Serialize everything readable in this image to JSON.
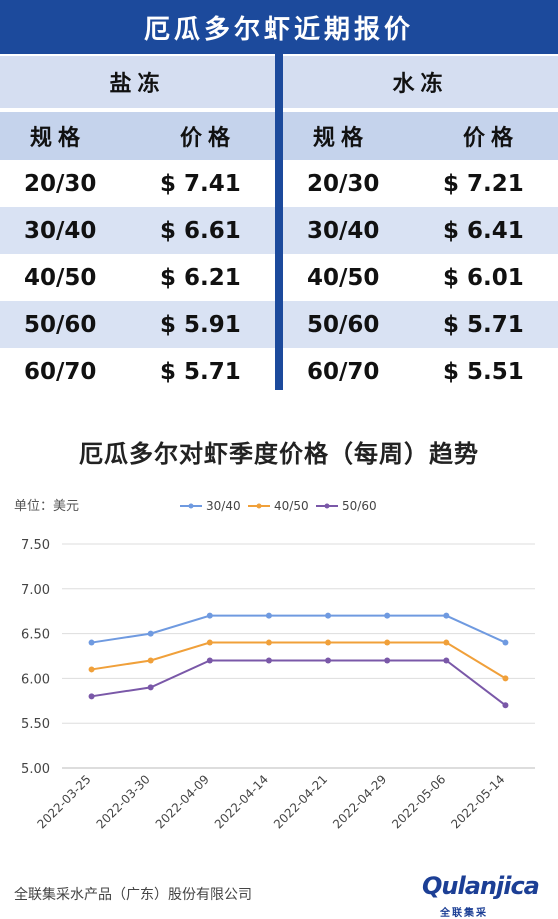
{
  "title": "厄瓜多尔虾近期报价",
  "table": {
    "left": {
      "category": "盐冻",
      "col_spec": "规格",
      "col_price": "价格",
      "rows": [
        {
          "spec": "20/30",
          "price": "$ 7.41"
        },
        {
          "spec": "30/40",
          "price": "$ 6.61"
        },
        {
          "spec": "40/50",
          "price": "$ 6.21"
        },
        {
          "spec": "50/60",
          "price": "$ 5.91"
        },
        {
          "spec": "60/70",
          "price": "$ 5.71"
        }
      ]
    },
    "right": {
      "category": "水冻",
      "col_spec": "规格",
      "col_price": "价格",
      "rows": [
        {
          "spec": "20/30",
          "price": "$ 7.21"
        },
        {
          "spec": "30/40",
          "price": "$ 6.41"
        },
        {
          "spec": "40/50",
          "price": "$ 6.01"
        },
        {
          "spec": "50/60",
          "price": "$ 5.71"
        },
        {
          "spec": "60/70",
          "price": "$ 5.51"
        }
      ]
    }
  },
  "chart_data": {
    "type": "line",
    "title": "厄瓜多尔对虾季度价格（每周）趋势",
    "unit_label": "单位：美元",
    "categories": [
      "2022-03-25",
      "2022-03-30",
      "2022-04-09",
      "2022-04-14",
      "2022-04-21",
      "2022-04-29",
      "2022-05-06",
      "2022-05-14"
    ],
    "ylim": [
      5.0,
      7.5
    ],
    "yticks": [
      "7.50",
      "7.00",
      "6.50",
      "6.00",
      "5.50",
      "5.00"
    ],
    "legend_position": "top",
    "grid": true,
    "series": [
      {
        "name": "30/40",
        "color": "#6f9ae0",
        "values": [
          6.4,
          6.5,
          6.7,
          6.7,
          6.7,
          6.7,
          6.7,
          6.4
        ]
      },
      {
        "name": "40/50",
        "color": "#f0a03a",
        "values": [
          6.1,
          6.2,
          6.4,
          6.4,
          6.4,
          6.4,
          6.4,
          6.0
        ]
      },
      {
        "name": "50/60",
        "color": "#7a58a8",
        "values": [
          5.8,
          5.9,
          6.2,
          6.2,
          6.2,
          6.2,
          6.2,
          5.7
        ]
      }
    ]
  },
  "footer": {
    "company": "全联集采水产品（广东）股份有限公司",
    "logo_text": "Qulanjica",
    "logo_sub": "全联集采"
  }
}
